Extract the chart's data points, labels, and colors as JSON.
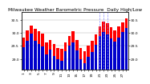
{
  "title": "Milwaukee Weather Barometric Pressure  Daily High/Low",
  "bar_highs": [
    29.82,
    30.1,
    30.28,
    30.15,
    30.05,
    29.95,
    29.62,
    29.72,
    29.58,
    29.42,
    29.38,
    29.62,
    29.88,
    30.05,
    29.72,
    29.42,
    29.28,
    29.52,
    29.68,
    29.92,
    30.25,
    30.42,
    30.35,
    30.22,
    30.08,
    30.25,
    30.4,
    30.55
  ],
  "bar_lows": [
    29.45,
    29.7,
    29.95,
    29.68,
    29.58,
    29.48,
    29.18,
    29.35,
    29.12,
    28.98,
    28.92,
    29.28,
    29.52,
    29.62,
    29.32,
    28.98,
    28.82,
    29.08,
    29.25,
    29.55,
    29.88,
    30.02,
    29.92,
    29.78,
    29.65,
    29.82,
    30.02,
    30.18
  ],
  "high_color": "#ff0000",
  "low_color": "#0000cc",
  "ylim_low": 28.6,
  "ylim_high": 30.8,
  "yticks": [
    29.0,
    29.5,
    30.0,
    30.5
  ],
  "ytick_labels": [
    "29.0",
    "29.5",
    "30.0",
    "30.5"
  ],
  "xlabels": [
    "1",
    "",
    "3",
    "",
    "5",
    "",
    "7",
    "",
    "9",
    "",
    "11",
    "",
    "13",
    "",
    "15",
    "",
    "17",
    "",
    "19",
    "",
    "21",
    "",
    "23",
    "",
    "25",
    "",
    "27",
    ""
  ],
  "dashed_vlines": [
    20,
    21,
    22
  ],
  "background_color": "#ffffff",
  "grid_color": "#aaaaaa",
  "title_fontsize": 4.2,
  "tick_fontsize": 3.2,
  "bar_width": 0.75
}
